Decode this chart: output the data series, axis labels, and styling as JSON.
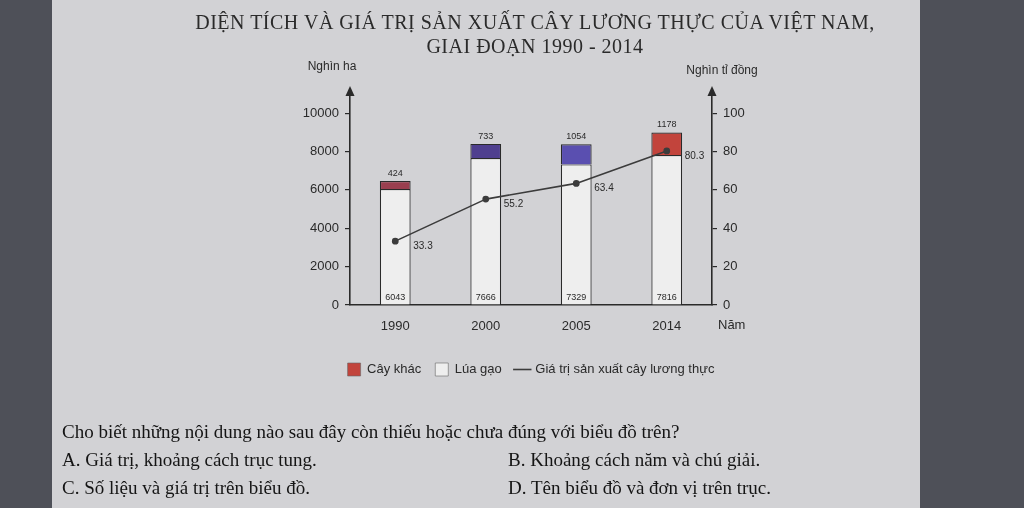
{
  "chart_data": {
    "type": "bar",
    "title": "DIỆN TÍCH VÀ GIÁ TRỊ SẢN XUẤT CÂY LƯƠNG THỰC CỦA VIỆT NAM, GIAI ĐOẠN 1990 - 2014",
    "xlabel": "Năm",
    "ylabel": "Nghìn ha",
    "y2label": "Nghìn tỉ đồng",
    "categories": [
      "1990",
      "2000",
      "2005",
      "2014"
    ],
    "stacked": true,
    "series": [
      {
        "name": "Lúa gạo",
        "color": "#eeeeee",
        "values": [
          6043,
          7666,
          7329,
          7816
        ]
      },
      {
        "name": "Cây khác",
        "color": "#c2443c",
        "colors": [
          "#9a3f4f",
          "#4f3f8f",
          "#5a4fb0",
          "#c2443c"
        ],
        "values": [
          424,
          733,
          1054,
          1178
        ]
      },
      {
        "name": "Giá trị sản xuất cây lương thực",
        "type": "line",
        "axis": "y2",
        "color": "#3c3c3c",
        "values": [
          33.3,
          55.2,
          63.4,
          80.3
        ]
      }
    ],
    "ylim": [
      0,
      11000
    ],
    "yticks": [
      0,
      2000,
      4000,
      6000,
      8000,
      10000
    ],
    "y2lim": [
      0,
      110
    ],
    "y2ticks": [
      0,
      20,
      40,
      60,
      80,
      100
    ],
    "grid": false,
    "legend": "bottom",
    "marker": "circle",
    "data_labels": true,
    "annotations": [
      "Cho biết những nội dung nào sau đây còn thiếu hoặc chưa đúng với biểu đồ trên?",
      "A. Giá trị, khoảng cách trục tung.",
      "B. Khoảng cách năm và chú giải.",
      "C. Số liệu và giá trị trên biểu đồ.",
      "D. Tên biểu đồ và đơn vị trên trục."
    ]
  }
}
